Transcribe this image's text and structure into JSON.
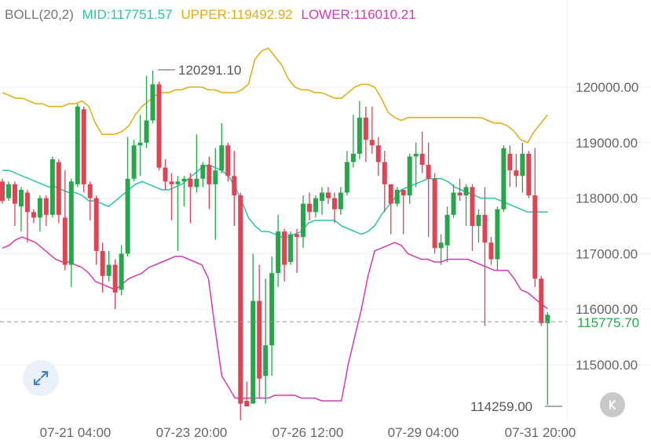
{
  "legend": {
    "indicator": "BOLL(20,2)",
    "mid": "MID:117751.57",
    "upper": "UPPER:119492.92",
    "lower": "LOWER:116010.21"
  },
  "colors": {
    "mid": "#2cc3a8",
    "upper": "#e2ac12",
    "lower": "#d33ab5",
    "up": "#27a64c",
    "down": "#dd4455",
    "current": "#27a64c"
  },
  "icons": {
    "expand": "expand-icon",
    "back": "chevron-left-icon"
  },
  "chart_data": {
    "type": "candlestick",
    "y_ticks": [
      "120000.00",
      "119000.00",
      "118000.00",
      "117000.00",
      "116000.00",
      "115000.00"
    ],
    "y_tick_values": [
      120000,
      119000,
      118000,
      117000,
      116000,
      115000
    ],
    "x_ticks": [
      "07-21 04:00",
      "07-23 20:00",
      "07-26 12:00",
      "07-29 04:00",
      "07-31 20:00"
    ],
    "high_label": "120291.10",
    "low_label": "114259.00",
    "current_price": 115775.7,
    "current_label": "115775.70",
    "ylim": [
      114100,
      120800
    ],
    "candles": [
      [
        118300,
        117950,
        118350,
        117900
      ],
      [
        118000,
        118250,
        118300,
        117950
      ],
      [
        118250,
        117900,
        118300,
        117500
      ],
      [
        117850,
        118150,
        118200,
        117400
      ],
      [
        118100,
        117750,
        118150,
        117200
      ],
      [
        117750,
        117650,
        117800,
        117550
      ],
      [
        117650,
        118000,
        118050,
        117400
      ],
      [
        118000,
        117700,
        118050,
        117500
      ],
      [
        117700,
        118700,
        118750,
        117650
      ],
      [
        118650,
        117700,
        118700,
        117550
      ],
      [
        117650,
        116800,
        118500,
        116700
      ],
      [
        116800,
        118300,
        118350,
        116400
      ],
      [
        118250,
        119650,
        119700,
        118200
      ],
      [
        119600,
        118250,
        119650,
        118100
      ],
      [
        118250,
        118000,
        118300,
        117600
      ],
      [
        118000,
        117050,
        118050,
        116800
      ],
      [
        117050,
        116600,
        117200,
        116300
      ],
      [
        116600,
        116800,
        117050,
        116500
      ],
      [
        116800,
        116300,
        116900,
        116000
      ],
      [
        116350,
        117000,
        117150,
        116250
      ],
      [
        117000,
        118350,
        119100,
        116950
      ],
      [
        118350,
        118950,
        119050,
        118300
      ],
      [
        118950,
        119000,
        119500,
        118400
      ],
      [
        119000,
        119400,
        120200,
        118900
      ],
      [
        119400,
        120050,
        120300,
        119350
      ],
      [
        120050,
        118550,
        120100,
        118500
      ],
      [
        118550,
        118300,
        118700,
        118150
      ],
      [
        118300,
        118250,
        118450,
        117600
      ],
      [
        118250,
        118300,
        118400,
        117050
      ],
      [
        118300,
        118350,
        118400,
        117850
      ],
      [
        118350,
        118200,
        118450,
        117550
      ],
      [
        118200,
        118350,
        119150,
        118100
      ],
      [
        118350,
        118600,
        118650,
        118200
      ],
      [
        118600,
        118250,
        118750,
        117800
      ],
      [
        118250,
        118500,
        118900,
        117250
      ],
      [
        118500,
        118950,
        119350,
        118450
      ],
      [
        118950,
        118400,
        119000,
        118300
      ],
      [
        118400,
        118050,
        118850,
        117500
      ],
      [
        118050,
        114300,
        118100,
        114000
      ],
      [
        114350,
        114250,
        114700,
        114300
      ],
      [
        114300,
        116150,
        117000,
        114900
      ],
      [
        116150,
        114750,
        116800,
        114400
      ],
      [
        114800,
        115350,
        116550,
        114300
      ],
      [
        115350,
        116650,
        116950,
        114800
      ],
      [
        116650,
        117400,
        117700,
        116400
      ],
      [
        117400,
        116800,
        117450,
        116500
      ],
      [
        116850,
        117350,
        117400,
        116800
      ],
      [
        117350,
        117300,
        117450,
        116650
      ],
      [
        117300,
        117900,
        118050,
        117100
      ],
      [
        117900,
        117750,
        118100,
        117600
      ],
      [
        117750,
        118000,
        118050,
        117650
      ],
      [
        117950,
        118100,
        118200,
        117700
      ],
      [
        118100,
        118000,
        118200,
        117900
      ],
      [
        118000,
        117800,
        118100,
        117550
      ],
      [
        117800,
        118100,
        118200,
        117700
      ],
      [
        118100,
        118650,
        118850,
        118050
      ],
      [
        118650,
        118800,
        119500,
        118550
      ],
      [
        118800,
        119450,
        119750,
        118700
      ],
      [
        119450,
        119050,
        119650,
        118650
      ],
      [
        119050,
        118950,
        119650,
        118800
      ],
      [
        118950,
        118650,
        119100,
        118400
      ],
      [
        118650,
        118250,
        118850,
        117750
      ],
      [
        118250,
        117900,
        118150,
        117350
      ],
      [
        117900,
        118150,
        118200,
        117850
      ],
      [
        118150,
        118050,
        118150,
        117350
      ],
      [
        118050,
        118750,
        118800,
        117900
      ],
      [
        118750,
        118800,
        119000,
        118200
      ],
      [
        118800,
        118600,
        119200,
        118450
      ],
      [
        118600,
        118350,
        119000,
        117300
      ],
      [
        118350,
        117100,
        118450,
        117000
      ],
      [
        117100,
        117200,
        117350,
        116800
      ],
      [
        117150,
        117700,
        117850,
        116850
      ],
      [
        117700,
        118100,
        118250,
        117650
      ],
      [
        118100,
        118050,
        118350,
        117950
      ],
      [
        118050,
        118200,
        118250,
        117500
      ],
      [
        118200,
        117500,
        118250,
        117050
      ],
      [
        117500,
        117700,
        117800,
        117200
      ],
      [
        117700,
        117200,
        118200,
        115700
      ],
      [
        117200,
        116900,
        117300,
        116800
      ],
      [
        116900,
        117800,
        117850,
        116700
      ],
      [
        117800,
        118900,
        118950,
        117750
      ],
      [
        118800,
        118500,
        118950,
        118200
      ],
      [
        118500,
        118400,
        118800,
        118200
      ],
      [
        118400,
        118800,
        119000,
        118100
      ],
      [
        118800,
        118050,
        118850,
        118000
      ],
      [
        118050,
        116550,
        118900,
        116400
      ],
      [
        116550,
        115750,
        116600,
        115700
      ],
      [
        115750,
        115900,
        115950,
        114280
      ]
    ],
    "bands": {
      "upper": [
        119900,
        119850,
        119800,
        119800,
        119750,
        119700,
        119700,
        119650,
        119650,
        119650,
        119700,
        119700,
        119750,
        119650,
        119350,
        119150,
        119150,
        119150,
        119200,
        119300,
        119500,
        119650,
        119750,
        119850,
        119900,
        119900,
        119950,
        119950,
        120000,
        120000,
        120000,
        119950,
        119950,
        119900,
        119900,
        119900,
        119950,
        120050,
        120500,
        120650,
        120700,
        120550,
        120400,
        120150,
        120000,
        119950,
        119950,
        119900,
        119900,
        119850,
        119800,
        119800,
        119900,
        120000,
        120050,
        120050,
        120000,
        119800,
        119550,
        119450,
        119400,
        119450,
        119450,
        119450,
        119450,
        119450,
        119450,
        119450,
        119450,
        119450,
        119450,
        119450,
        119450,
        119400,
        119350,
        119350,
        119300,
        119200,
        119050,
        119000,
        119200,
        119350,
        119500
      ],
      "mid": [
        118500,
        118500,
        118450,
        118400,
        118350,
        118300,
        118250,
        118200,
        118200,
        118150,
        118100,
        118100,
        118050,
        117950,
        117950,
        117900,
        117850,
        117950,
        118050,
        118150,
        118250,
        118300,
        118250,
        118200,
        118150,
        118150,
        118200,
        118250,
        118350,
        118450,
        118550,
        118600,
        118550,
        118500,
        118400,
        118200,
        117950,
        117650,
        117500,
        117400,
        117400,
        117350,
        117300,
        117300,
        117350,
        117400,
        117550,
        117600,
        117600,
        117600,
        117600,
        117500,
        117450,
        117400,
        117350,
        117400,
        117500,
        117700,
        117850,
        118000,
        118150,
        118200,
        118250,
        118300,
        118350,
        118350,
        118350,
        118300,
        118200,
        118150,
        118100,
        118050,
        118000,
        118000,
        118000,
        117950,
        117900,
        117850,
        117800,
        117750,
        117750,
        117750,
        117750
      ],
      "lower": [
        117100,
        117150,
        117250,
        117300,
        117250,
        117200,
        117100,
        117000,
        116900,
        116850,
        116850,
        116800,
        116750,
        116650,
        116500,
        116450,
        116400,
        116350,
        116450,
        116550,
        116600,
        116650,
        116750,
        116800,
        116850,
        116900,
        116950,
        116950,
        116900,
        116850,
        116800,
        116550,
        115650,
        114800,
        114600,
        114400,
        114400,
        114400,
        114400,
        114400,
        114400,
        114450,
        114450,
        114450,
        114450,
        114400,
        114400,
        114400,
        114350,
        114350,
        114350,
        114350,
        115000,
        115500,
        116000,
        116600,
        117050,
        117100,
        117150,
        117200,
        117150,
        117000,
        116950,
        116900,
        116900,
        116850,
        116850,
        116900,
        116900,
        116900,
        116900,
        116850,
        116800,
        116750,
        116700,
        116700,
        116700,
        116550,
        116350,
        116300,
        116200,
        116100,
        116010
      ]
    }
  }
}
